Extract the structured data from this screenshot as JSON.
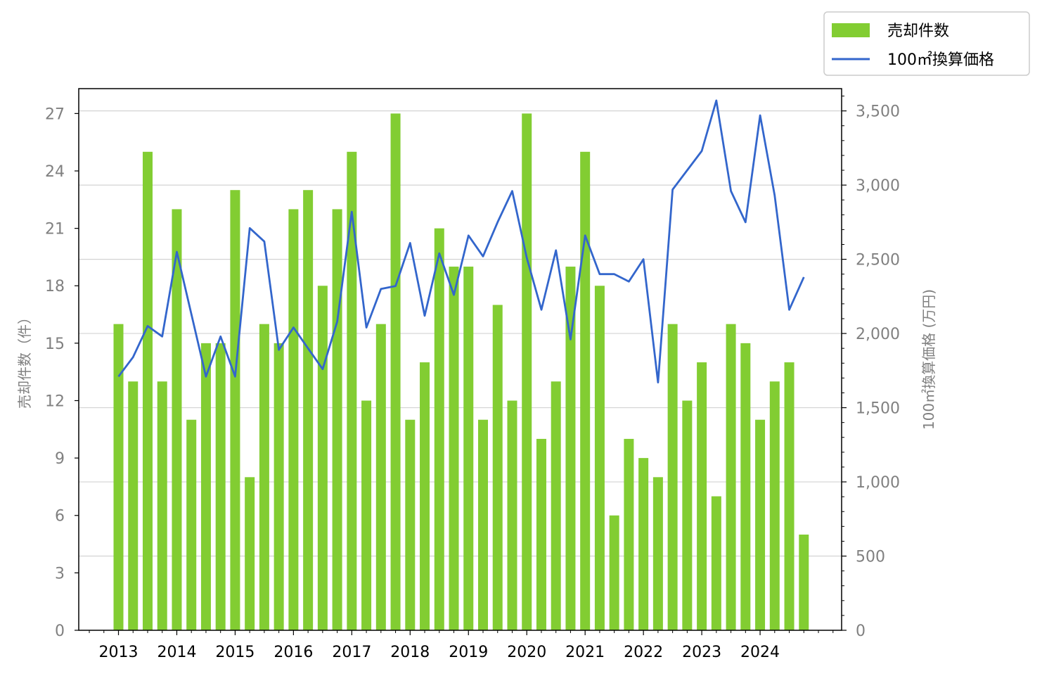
{
  "chart_data": {
    "type": "bar",
    "title": "",
    "xlabel": "",
    "ylabel": "売却件数（件）",
    "y2label": "100㎡換算価格 (万円)",
    "x_tick_labels": [
      "2013",
      "2014",
      "2015",
      "2016",
      "2017",
      "2018",
      "2019",
      "2020",
      "2021",
      "2022",
      "2023",
      "2024"
    ],
    "left_ticks": [
      "0",
      "3",
      "6",
      "9",
      "12",
      "15",
      "18",
      "21",
      "24",
      "27"
    ],
    "right_ticks": [
      "0",
      "500",
      "1,000",
      "1,500",
      "2,000",
      "2,500",
      "3,000",
      "3,500"
    ],
    "ylim": [
      0,
      28.3
    ],
    "y2lim": [
      0,
      3650
    ],
    "grid": "horizontal",
    "legend_position": "top-right (outside plot)",
    "series": [
      {
        "name": "売却件数",
        "kind": "bar",
        "color": "#82cd32",
        "values": [
          16,
          13,
          25,
          13,
          22,
          11,
          15,
          15,
          23,
          8,
          16,
          15,
          22,
          23,
          18,
          22,
          25,
          12,
          16,
          27,
          11,
          14,
          21,
          19,
          19,
          11,
          17,
          12,
          27,
          10,
          13,
          19,
          25,
          18,
          6,
          10,
          9,
          8,
          16,
          12,
          14,
          7,
          16,
          15,
          11,
          13,
          14,
          5
        ]
      },
      {
        "name": "100㎡換算価格",
        "kind": "line",
        "color": "#3366cc",
        "values": [
          1710,
          1840,
          2050,
          1980,
          2550,
          2130,
          1710,
          1980,
          1710,
          2710,
          2620,
          1890,
          2040,
          1900,
          1760,
          2080,
          2820,
          2040,
          2300,
          2320,
          2610,
          2120,
          2540,
          2260,
          2660,
          2520,
          2750,
          2960,
          2510,
          2160,
          2560,
          1960,
          2660,
          2400,
          2400,
          2350,
          2500,
          1670,
          2970,
          3100,
          3230,
          3570,
          2960,
          2750,
          3470,
          2930,
          2160,
          2380
        ]
      }
    ]
  }
}
